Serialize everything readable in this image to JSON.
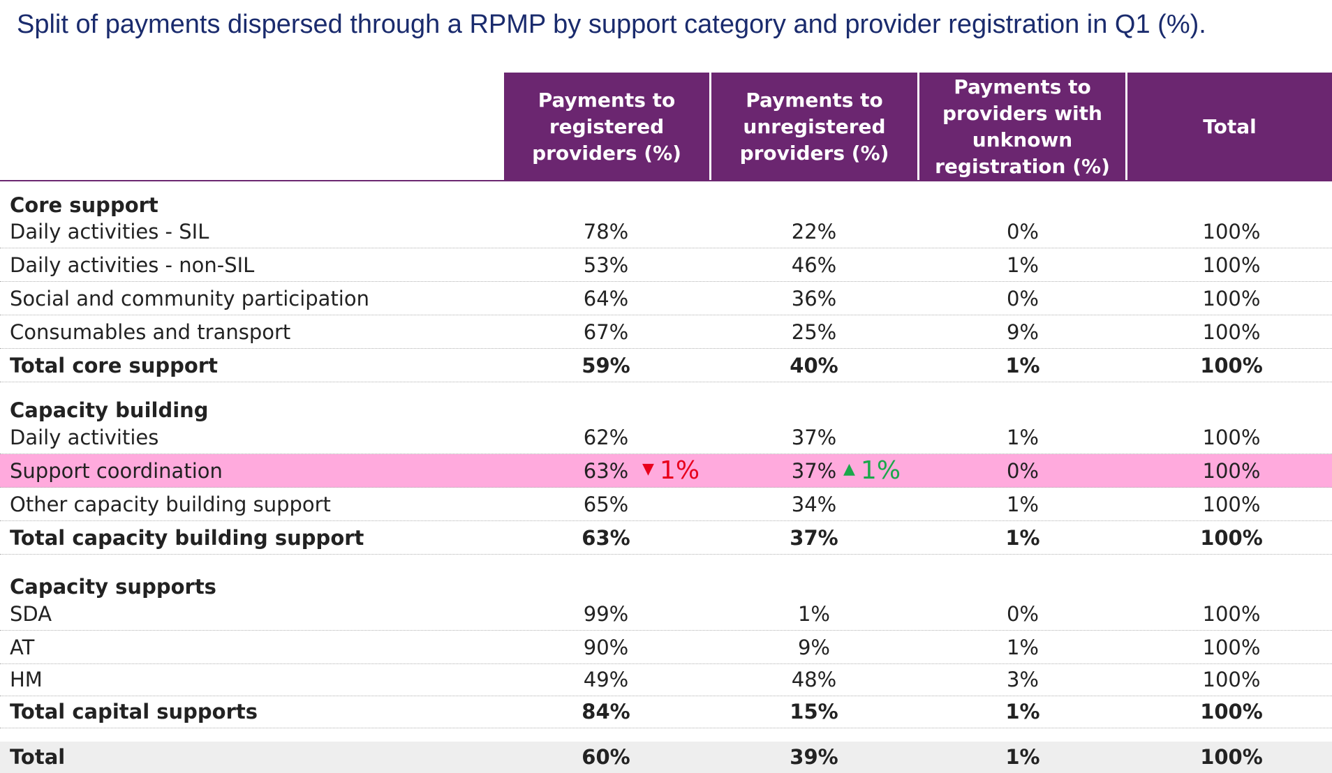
{
  "title": "Split of payments dispersed through a RPMP by support category and provider registration in Q1 (%).",
  "colors": {
    "header_bg": "#6b2670",
    "highlight_row": "#ffaadd",
    "total_row": "#eeeeee",
    "decrease": "#e8001c",
    "increase": "#1aa84a",
    "title": "#1a2b6d"
  },
  "columns": [
    "Payments to registered providers (%)",
    "Payments to unregistered providers (%)",
    "Payments to providers with unknown registration (%)",
    "Total"
  ],
  "sections": [
    {
      "name": "Core support",
      "rows": [
        {
          "label": "Daily activities - SIL",
          "values": [
            "78%",
            "22%",
            "0%",
            "100%"
          ]
        },
        {
          "label": "Daily activities - non-SIL",
          "values": [
            "53%",
            "46%",
            "1%",
            "100%"
          ]
        },
        {
          "label": "Social and community participation",
          "values": [
            "64%",
            "36%",
            "0%",
            "100%"
          ]
        },
        {
          "label": "Consumables and transport",
          "values": [
            "67%",
            "25%",
            "9%",
            "100%"
          ]
        }
      ],
      "total": {
        "label": "Total core support",
        "values": [
          "59%",
          "40%",
          "1%",
          "100%"
        ]
      }
    },
    {
      "name": "Capacity building",
      "rows": [
        {
          "label": "Daily activities",
          "values": [
            "62%",
            "37%",
            "1%",
            "100%"
          ]
        },
        {
          "label": "Support coordination",
          "values": [
            "63%",
            "37%",
            "0%",
            "100%"
          ],
          "highlight": true,
          "changes": [
            {
              "direction": "down",
              "arrow": "▼",
              "text": "1%"
            },
            {
              "direction": "up",
              "arrow": "▲",
              "text": "1%"
            }
          ]
        },
        {
          "label": "Other capacity building support",
          "values": [
            "65%",
            "34%",
            "1%",
            "100%"
          ]
        }
      ],
      "total": {
        "label": "Total capacity building support",
        "values": [
          "63%",
          "37%",
          "1%",
          "100%"
        ]
      }
    },
    {
      "name": "Capacity supports",
      "rows": [
        {
          "label": "SDA",
          "values": [
            "99%",
            "1%",
            "0%",
            "100%"
          ]
        },
        {
          "label": "AT",
          "values": [
            "90%",
            "9%",
            "1%",
            "100%"
          ]
        },
        {
          "label": "HM",
          "values": [
            "49%",
            "48%",
            "3%",
            "100%"
          ]
        }
      ],
      "total": {
        "label": "Total capital supports",
        "values": [
          "84%",
          "15%",
          "1%",
          "100%"
        ]
      }
    }
  ],
  "grand_total": {
    "label": "Total",
    "values": [
      "60%",
      "39%",
      "1%",
      "100%"
    ]
  }
}
